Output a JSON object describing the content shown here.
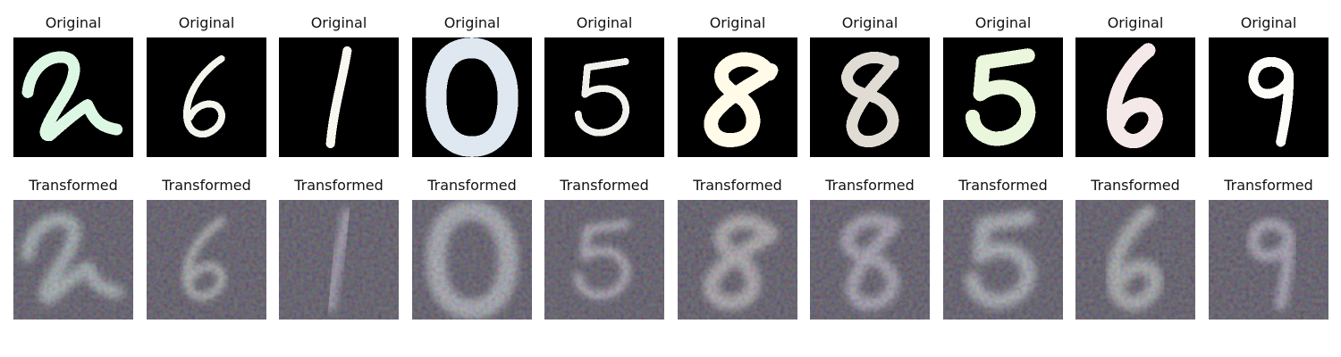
{
  "rows": [
    {
      "row": "original",
      "title": "Original",
      "digits": [
        "2",
        "6",
        "1",
        "0",
        "5",
        "8",
        "8",
        "5",
        "6",
        "9"
      ],
      "tints": [
        "#dcf8e4",
        "#f4f6ee",
        "#f8f8f0",
        "#dfe8f0",
        "#f0f0ec",
        "#fffbe8",
        "#e0dcd4",
        "#eaf7dc",
        "#f5e8e8",
        "#fbfbf8"
      ]
    },
    {
      "row": "transformed",
      "title": "Transformed",
      "digits": [
        "2",
        "6",
        "1",
        "0",
        "5",
        "8",
        "8",
        "5",
        "6",
        "9"
      ],
      "tints": [
        "#a6b8b0",
        "#aeb6ac",
        "#a2a0ac",
        "#a8b0b0",
        "#b0b0b4",
        "#b0b0aa",
        "#a8a8b0",
        "#a8b2b0",
        "#a8b0a8",
        "#a8a8b4"
      ]
    }
  ]
}
